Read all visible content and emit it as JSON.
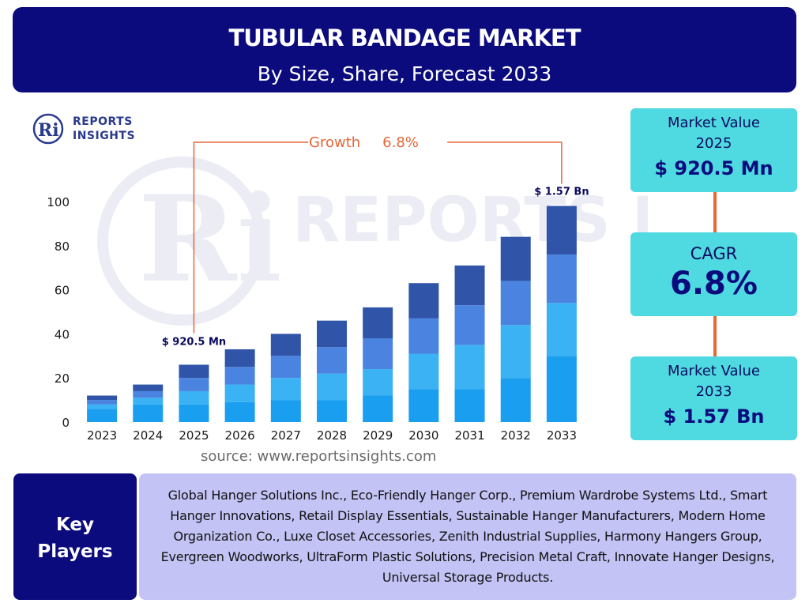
{
  "header": {
    "title": "TUBULAR BANDAGE MARKET",
    "subtitle": "By Size, Share, Forecast 2033"
  },
  "logo": {
    "mark": "Ri",
    "line1": "REPORTS",
    "line2": "INSIGHTS"
  },
  "watermark_text": "REPORTS INSIGHTS",
  "chart_data": {
    "type": "bar",
    "stacked": true,
    "categories": [
      "2023",
      "2024",
      "2025",
      "2026",
      "2027",
      "2028",
      "2029",
      "2030",
      "2031",
      "2032",
      "2033"
    ],
    "series": [
      {
        "values": [
          6,
          8,
          8,
          9,
          10,
          10,
          12,
          15,
          15,
          20,
          30
        ],
        "color": "#1a9ef0"
      },
      {
        "values": [
          2,
          3,
          6,
          8,
          10,
          12,
          12,
          16,
          20,
          24,
          24
        ],
        "color": "#3ab2f3"
      },
      {
        "values": [
          2,
          3,
          6,
          8,
          10,
          12,
          14,
          16,
          18,
          20,
          22
        ],
        "color": "#4a84e0"
      },
      {
        "values": [
          2,
          3,
          6,
          8,
          10,
          12,
          14,
          16,
          18,
          20,
          22
        ],
        "color": "#2f54a8"
      }
    ],
    "ylim": [
      0,
      100
    ],
    "yticks": [
      0,
      20,
      40,
      60,
      80,
      100
    ],
    "grid": false,
    "annotations": {
      "growth_label": "Growth",
      "growth_value": "6.8%",
      "start_label": "$ 920.5 Mn",
      "end_label": "$ 1.57 Bn",
      "start_category": "2025",
      "end_category": "2033",
      "color": "#e4683a"
    }
  },
  "source": "source: www.reportsinsights.com",
  "cards": {
    "market_value_start": {
      "label_line1": "Market Value",
      "label_line2": "2025",
      "value": "$ 920.5 Mn"
    },
    "cagr": {
      "label": "CAGR",
      "value": "6.8%"
    },
    "market_value_end": {
      "label_line1": "Market Value",
      "label_line2": "2033",
      "value": "$ 1.57 Bn"
    }
  },
  "key_players": {
    "label_line1": "Key",
    "label_line2": "Players",
    "text": "Global Hanger Solutions Inc., Eco-Friendly Hanger Corp., Premium Wardrobe Systems Ltd., Smart Hanger Innovations, Retail Display Essentials, Sustainable Hanger Manufacturers, Modern Home Organization Co., Luxe Closet Accessories, Zenith Industrial Supplies, Harmony Hangers Group, Evergreen Woodworks, UltraForm Plastic Solutions, Precision Metal Craft, Innovate Hanger Designs, Universal Storage Products."
  },
  "colors": {
    "navy": "#0b0b7d",
    "cyan_card": "#4fd9e0",
    "lavender": "#c3c3f5",
    "accent_orange": "#e4683a"
  }
}
